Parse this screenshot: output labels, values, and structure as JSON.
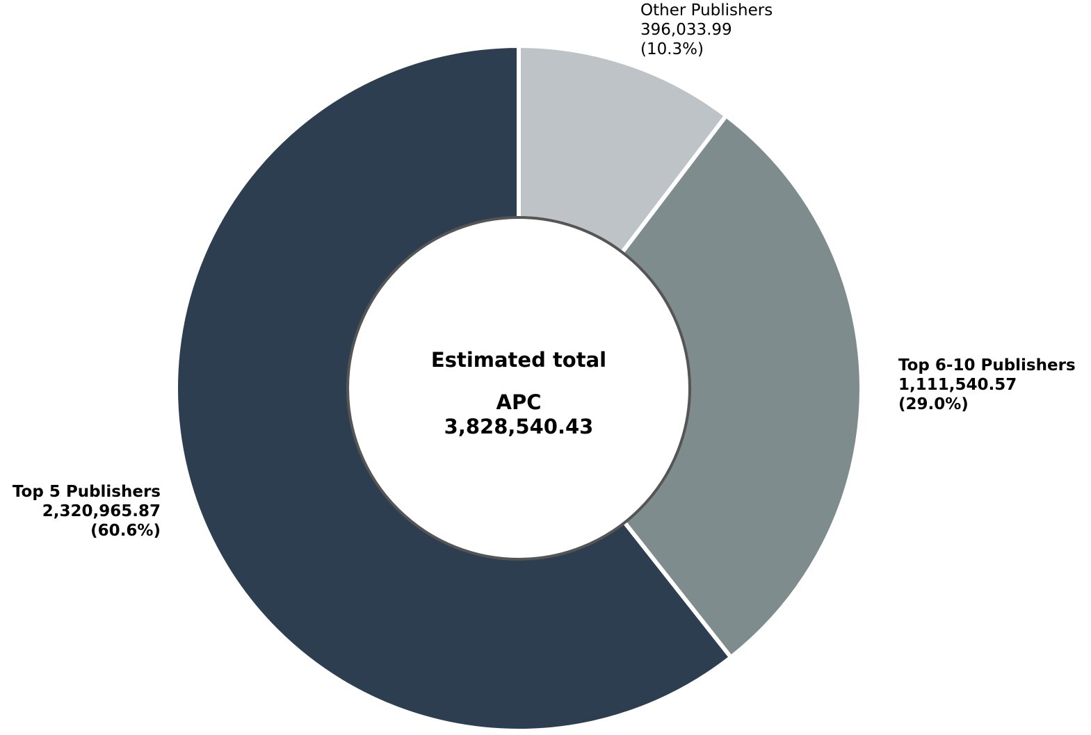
{
  "chart_data": {
    "type": "pie",
    "variant": "donut",
    "start_angle_deg": 90,
    "direction": "clockwise",
    "series": [
      {
        "name": "Other Publishers",
        "value": 396033.99,
        "value_label": "396,033.99",
        "percent_label": "(10.3%)",
        "color": "#bdc3c7",
        "label_weight": "normal"
      },
      {
        "name": "Top 6-10 Publishers",
        "value": 1111540.57,
        "value_label": "1,111,540.57",
        "percent_label": "(29.0%)",
        "color": "#7f8c8d",
        "label_weight": "bold"
      },
      {
        "name": "Top 5 Publishers",
        "value": 2320965.87,
        "value_label": "2,320,965.87",
        "percent_label": "(60.6%)",
        "color": "#2c3e50",
        "label_weight": "bold"
      }
    ],
    "center": {
      "line1": "Estimated total",
      "line2": "APC",
      "line3": "3,828,540.43",
      "border_color": "#555555"
    }
  }
}
